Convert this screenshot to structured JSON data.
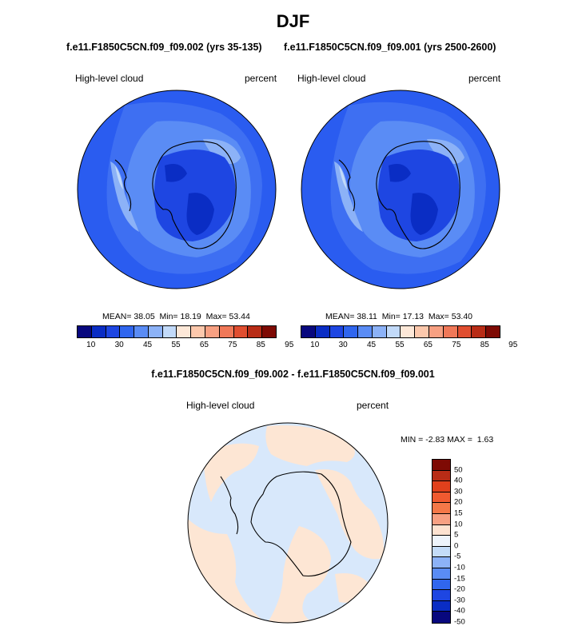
{
  "main_title": "DJF",
  "panels": [
    {
      "title": "f.e11.F1850C5CN.f09_f09.002 (yrs 35-135)",
      "left_label": "High-level cloud",
      "right_label": "percent",
      "stats": {
        "mean_label": "MEAN=",
        "mean": "38.05",
        "min_label": "Min=",
        "min": "18.19",
        "max_label": "Max=",
        "max": "53.44"
      }
    },
    {
      "title": "f.e11.F1850C5CN.f09_f09.001 (yrs 2500-2600)",
      "left_label": "High-level cloud",
      "right_label": "percent",
      "stats": {
        "mean_label": "MEAN=",
        "mean": "38.11",
        "min_label": "Min=",
        "min": "17.13",
        "max_label": "Max=",
        "max": "53.40"
      }
    }
  ],
  "diff_panel": {
    "title": "f.e11.F1850C5CN.f09_f09.002 - f.e11.F1850C5CN.f09_f09.001",
    "left_label": "High-level cloud",
    "right_label": "percent",
    "minmax": {
      "min_label": "MIN =",
      "min": "-2.83",
      "max_label": "MAX =",
      "max": "1.63"
    }
  },
  "colorbar_h": {
    "colors": [
      "#08087e",
      "#0a2dc4",
      "#1e46e2",
      "#3066ee",
      "#5a8cf5",
      "#8cb2f7",
      "#c2daf9",
      "#fde8d8",
      "#fcc8ac",
      "#f7a082",
      "#f07858",
      "#e04e30",
      "#b82c16",
      "#7e0a04"
    ],
    "ticks": [
      "10",
      "30",
      "45",
      "55",
      "65",
      "75",
      "85",
      "95"
    ]
  },
  "colorbar_v": {
    "colors": [
      "#7e0a04",
      "#b82c16",
      "#e0401c",
      "#f05a30",
      "#f47848",
      "#f7a082",
      "#fde2d0",
      "#eef4fb",
      "#c4dcf8",
      "#8cb2f7",
      "#5a8cf5",
      "#3066ee",
      "#1e46e2",
      "#0a2dc4",
      "#08087e"
    ],
    "ticks": [
      "50",
      "40",
      "30",
      "20",
      "15",
      "10",
      "5",
      "0",
      "-5",
      "-10",
      "-15",
      "-20",
      "-30",
      "-40",
      "-50"
    ]
  },
  "map_colors": {
    "ocean_main": "#2a5cf0",
    "mid_blue": "#3e6ff2",
    "light_blue": "#5a8cf5",
    "pale_blue": "#8cb2f7",
    "very_pale": "#c2daf9",
    "deep": "#1e46e2",
    "darker": "#0a2dc4",
    "diff_pos": "#fde6d4",
    "diff_neg": "#d8e8fb",
    "coast": "#000000"
  }
}
